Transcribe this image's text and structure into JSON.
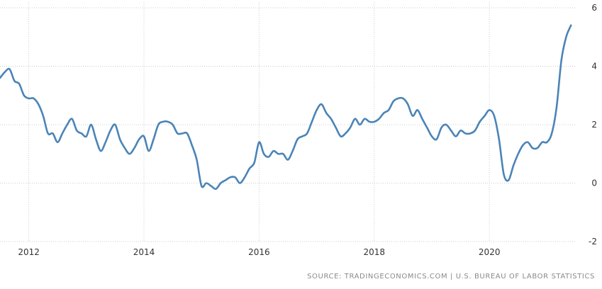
{
  "chart_data": {
    "type": "line",
    "title": "",
    "xlabel": "",
    "ylabel": "",
    "x_tick_labels": [
      "2012",
      "2014",
      "2016",
      "2018",
      "2020"
    ],
    "y_tick_labels": [
      "6",
      "4",
      "2",
      "0",
      "-2"
    ],
    "xlim": [
      2011.5,
      2021.5
    ],
    "ylim": [
      -2,
      6
    ],
    "grid": true,
    "line_color": "#4b84b7",
    "grid_color": "#cccccc",
    "series": [
      {
        "x": [
          2011.5,
          2011.583,
          2011.667,
          2011.75,
          2011.833,
          2011.917,
          2012.0,
          2012.083,
          2012.167,
          2012.25,
          2012.333,
          2012.417,
          2012.5,
          2012.583,
          2012.667,
          2012.75,
          2012.833,
          2012.917,
          2013.0,
          2013.083,
          2013.167,
          2013.25,
          2013.333,
          2013.417,
          2013.5,
          2013.583,
          2013.667,
          2013.75,
          2013.833,
          2013.917,
          2014.0,
          2014.083,
          2014.167,
          2014.25,
          2014.333,
          2014.417,
          2014.5,
          2014.583,
          2014.667,
          2014.75,
          2014.833,
          2014.917,
          2015.0,
          2015.083,
          2015.167,
          2015.25,
          2015.333,
          2015.417,
          2015.5,
          2015.583,
          2015.667,
          2015.75,
          2015.833,
          2015.917,
          2016.0,
          2016.083,
          2016.167,
          2016.25,
          2016.333,
          2016.417,
          2016.5,
          2016.583,
          2016.667,
          2016.75,
          2016.833,
          2016.917,
          2017.0,
          2017.083,
          2017.167,
          2017.25,
          2017.333,
          2017.417,
          2017.5,
          2017.583,
          2017.667,
          2017.75,
          2017.833,
          2017.917,
          2018.0,
          2018.083,
          2018.167,
          2018.25,
          2018.333,
          2018.417,
          2018.5,
          2018.583,
          2018.667,
          2018.75,
          2018.833,
          2018.917,
          2019.0,
          2019.083,
          2019.167,
          2019.25,
          2019.333,
          2019.417,
          2019.5,
          2019.583,
          2019.667,
          2019.75,
          2019.833,
          2019.917,
          2020.0,
          2020.083,
          2020.167,
          2020.25,
          2020.333,
          2020.417,
          2020.5,
          2020.583,
          2020.667,
          2020.75,
          2020.833,
          2020.917,
          2021.0,
          2021.083,
          2021.167,
          2021.25,
          2021.333,
          2021.417
        ],
        "values": [
          3.6,
          3.8,
          3.9,
          3.5,
          3.4,
          3.0,
          2.9,
          2.9,
          2.7,
          2.3,
          1.7,
          1.7,
          1.4,
          1.7,
          2.0,
          2.2,
          1.8,
          1.7,
          1.6,
          2.0,
          1.5,
          1.1,
          1.4,
          1.8,
          2.0,
          1.5,
          1.2,
          1.0,
          1.2,
          1.5,
          1.6,
          1.1,
          1.5,
          2.0,
          2.1,
          2.1,
          2.0,
          1.7,
          1.7,
          1.7,
          1.3,
          0.8,
          -0.1,
          0.0,
          -0.1,
          -0.2,
          0.0,
          0.1,
          0.2,
          0.2,
          0.0,
          0.2,
          0.5,
          0.7,
          1.4,
          1.0,
          0.9,
          1.1,
          1.0,
          1.0,
          0.8,
          1.1,
          1.5,
          1.6,
          1.7,
          2.1,
          2.5,
          2.7,
          2.4,
          2.2,
          1.9,
          1.6,
          1.7,
          1.9,
          2.2,
          2.0,
          2.2,
          2.1,
          2.1,
          2.2,
          2.4,
          2.5,
          2.8,
          2.9,
          2.9,
          2.7,
          2.3,
          2.5,
          2.2,
          1.9,
          1.6,
          1.5,
          1.9,
          2.0,
          1.8,
          1.6,
          1.8,
          1.7,
          1.7,
          1.8,
          2.1,
          2.3,
          2.5,
          2.3,
          1.5,
          0.3,
          0.1,
          0.6,
          1.0,
          1.3,
          1.4,
          1.2,
          1.2,
          1.4,
          1.4,
          1.7,
          2.6,
          4.2,
          5.0,
          5.4
        ]
      }
    ]
  },
  "source_text": "SOURCE: TRADINGECONOMICS.COM | U.S. BUREAU OF LABOR STATISTICS"
}
